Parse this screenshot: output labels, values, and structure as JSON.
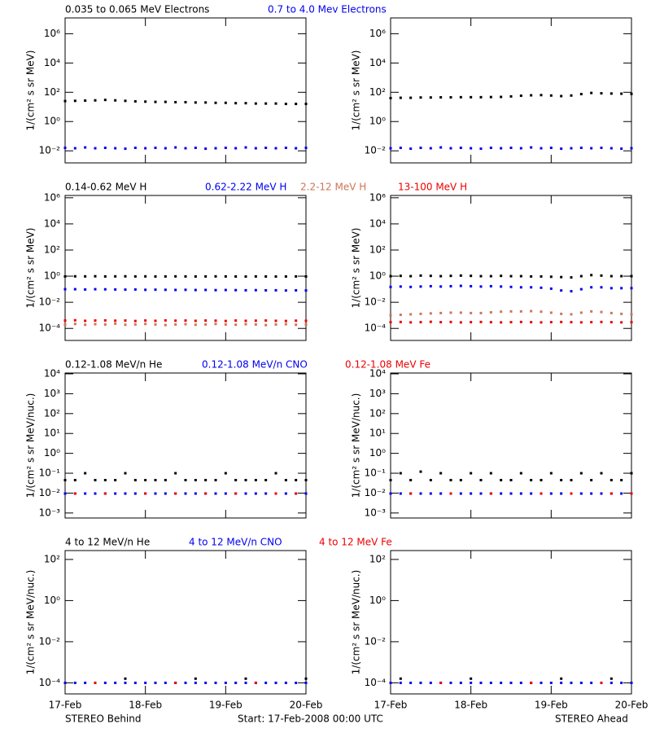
{
  "x_axis": {
    "xlim": [
      17,
      20
    ],
    "xticks": [
      {
        "value": 17,
        "label": "17-Feb"
      },
      {
        "value": 18,
        "label": "18-Feb"
      },
      {
        "value": 19,
        "label": "19-Feb"
      },
      {
        "value": 20,
        "label": "20-Feb"
      }
    ],
    "x": [
      17,
      17.125,
      17.25,
      17.375,
      17.5,
      17.625,
      17.75,
      17.875,
      18,
      18.125,
      18.25,
      18.375,
      18.5,
      18.625,
      18.75,
      18.875,
      19,
      19.125,
      19.25,
      19.375,
      19.5,
      19.625,
      19.75,
      19.875,
      20
    ]
  },
  "footer": {
    "left": "STEREO Behind",
    "center": "Start: 17-Feb-2008 00:00 UTC",
    "right": "STEREO Ahead"
  },
  "chart_data": [
    {
      "type": "scatter",
      "log_y": true,
      "ylabel": "1/(cm² s sr MeV)",
      "ylim": [
        0.0015,
        12000000
      ],
      "yticks": [
        {
          "value": 0.01,
          "label": "10⁻²"
        },
        {
          "value": 1,
          "label": "10⁰"
        },
        {
          "value": 100,
          "label": "10²"
        },
        {
          "value": 10000,
          "label": "10⁴"
        },
        {
          "value": 1000000,
          "label": "10⁶"
        }
      ],
      "series": [
        {
          "name": "0.035 to 0.065 MeV Electrons",
          "color": "#000000",
          "values": [
            [
              25,
              26,
              27,
              28,
              30,
              28,
              26,
              24,
              23,
              22,
              22,
              21,
              21,
              20,
              20,
              19,
              19,
              18,
              18,
              17,
              17,
              17,
              16,
              16,
              16
            ],
            [
              40,
              42,
              42,
              44,
              44,
              45,
              45,
              46,
              46,
              46,
              47,
              48,
              52,
              58,
              62,
              64,
              60,
              55,
              60,
              75,
              90,
              85,
              82,
              80,
              78
            ]
          ]
        },
        {
          "name": "0.7 to 4.0 Mev Electrons",
          "color": "#0000ee",
          "values": [
            [
              0.016,
              0.015,
              0.017,
              0.015,
              0.016,
              0.015,
              0.014,
              0.016,
              0.015,
              0.016,
              0.015,
              0.017,
              0.015,
              0.016,
              0.014,
              0.015,
              0.016,
              0.015,
              0.017,
              0.015,
              0.016,
              0.015,
              0.016,
              0.015,
              0.016
            ],
            [
              0.015,
              0.016,
              0.014,
              0.016,
              0.015,
              0.017,
              0.015,
              0.016,
              0.015,
              0.014,
              0.016,
              0.015,
              0.016,
              0.015,
              0.017,
              0.015,
              0.016,
              0.014,
              0.015,
              0.016,
              0.015,
              0.016,
              0.015,
              0.014,
              0.015
            ]
          ]
        }
      ]
    },
    {
      "type": "scatter",
      "log_y": true,
      "ylabel": "1/(cm² s sr MeV)",
      "ylim": [
        1.2e-05,
        1500000
      ],
      "yticks": [
        {
          "value": 0.0001,
          "label": "10⁻⁴"
        },
        {
          "value": 0.01,
          "label": "10⁻²"
        },
        {
          "value": 1,
          "label": "10⁰"
        },
        {
          "value": 100,
          "label": "10²"
        },
        {
          "value": 10000,
          "label": "10⁴"
        },
        {
          "value": 1000000,
          "label": "10⁶"
        }
      ],
      "series": [
        {
          "name": "0.14-0.62 MeV H",
          "color": "#000000",
          "values": [
            [
              0.95,
              0.97,
              0.96,
              0.98,
              0.95,
              0.96,
              0.97,
              0.95,
              0.96,
              0.94,
              0.95,
              0.96,
              0.95,
              0.94,
              0.95,
              0.96,
              0.95,
              0.94,
              0.93,
              0.95,
              0.94,
              0.93,
              0.94,
              0.95,
              0.94
            ],
            [
              1.0,
              1.05,
              1.0,
              1.1,
              1.05,
              1.0,
              1.05,
              1.1,
              1.05,
              1.0,
              1.0,
              1.05,
              1.0,
              1.0,
              0.95,
              0.95,
              0.9,
              0.85,
              0.8,
              1.0,
              1.2,
              1.1,
              1.0,
              1.0,
              1.0
            ]
          ]
        },
        {
          "name": "0.62-2.22 MeV H",
          "color": "#0000ee",
          "values": [
            [
              0.1,
              0.1,
              0.095,
              0.1,
              0.098,
              0.095,
              0.093,
              0.095,
              0.09,
              0.092,
              0.09,
              0.088,
              0.09,
              0.087,
              0.088,
              0.085,
              0.087,
              0.085,
              0.083,
              0.085,
              0.082,
              0.083,
              0.08,
              0.082,
              0.08
            ],
            [
              0.15,
              0.16,
              0.15,
              0.16,
              0.17,
              0.16,
              0.17,
              0.18,
              0.17,
              0.16,
              0.17,
              0.16,
              0.15,
              0.14,
              0.14,
              0.13,
              0.11,
              0.08,
              0.07,
              0.1,
              0.14,
              0.14,
              0.12,
              0.12,
              0.12
            ]
          ]
        },
        {
          "name": "2.2-12 MeV H",
          "color": "#cc7755",
          "values": [
            [
              0.0002,
              0.00022,
              0.00019,
              0.00021,
              0.0002,
              0.00023,
              0.00019,
              0.0002,
              0.00022,
              0.0002,
              0.00018,
              0.0002,
              0.00021,
              0.00019,
              0.0002,
              0.00022,
              0.0002,
              0.00019,
              0.00021,
              0.0002,
              0.00018,
              0.0002,
              0.00021,
              0.00019,
              0.0002
            ],
            [
              0.001,
              0.0011,
              0.0012,
              0.0013,
              0.0014,
              0.0015,
              0.0016,
              0.0016,
              0.0015,
              0.0015,
              0.0017,
              0.0019,
              0.002,
              0.002,
              0.0021,
              0.0019,
              0.0016,
              0.0013,
              0.0012,
              0.0016,
              0.002,
              0.0018,
              0.0015,
              0.0013,
              0.0012
            ]
          ]
        },
        {
          "name": "13-100 MeV H",
          "color": "#ee0000",
          "values": [
            [
              0.0004,
              0.00042,
              0.00038,
              0.0004,
              0.00041,
              0.00039,
              0.0004,
              0.00037,
              0.0004,
              0.00038,
              0.00041,
              0.00039,
              0.0004,
              0.00038,
              0.0004,
              0.00039,
              0.00037,
              0.0004,
              0.00038,
              0.00039,
              0.0004,
              0.00038,
              0.00037,
              0.00039,
              0.00038
            ],
            [
              0.0003,
              0.00031,
              0.00029,
              0.0003,
              0.00032,
              0.0003,
              0.00031,
              0.00029,
              0.0003,
              0.00031,
              0.0003,
              0.00029,
              0.0003,
              0.00031,
              0.0003,
              0.00029,
              0.0003,
              0.00031,
              0.0003,
              0.00029,
              0.0003,
              0.00031,
              0.0003,
              0.00029,
              0.0003
            ]
          ]
        }
      ]
    },
    {
      "type": "scatter",
      "log_y": true,
      "ylabel": "1/(cm² s sr MeV/nuc.)",
      "ylim": [
        0.00056,
        11000
      ],
      "yticks": [
        {
          "value": 0.001,
          "label": "10⁻³"
        },
        {
          "value": 0.01,
          "label": "10⁻²"
        },
        {
          "value": 0.1,
          "label": "10⁻¹"
        },
        {
          "value": 1,
          "label": "10⁰"
        },
        {
          "value": 10,
          "label": "10¹"
        },
        {
          "value": 100,
          "label": "10²"
        },
        {
          "value": 1000,
          "label": "10³"
        },
        {
          "value": 10000,
          "label": "10⁴"
        }
      ],
      "series": [
        {
          "name": "0.12-1.08 MeV/n He",
          "color": "#000000",
          "values": [
            [
              0.045,
              0.045,
              0.1,
              0.045,
              0.045,
              0.045,
              0.1,
              0.045,
              0.045,
              0.045,
              0.045,
              0.1,
              0.045,
              0.045,
              0.045,
              0.045,
              0.1,
              0.045,
              0.045,
              0.045,
              0.045,
              0.1,
              0.045,
              0.045,
              0.045
            ],
            [
              0.045,
              0.1,
              0.045,
              0.12,
              0.045,
              0.1,
              0.045,
              0.045,
              0.1,
              0.045,
              0.1,
              0.045,
              0.045,
              0.1,
              0.045,
              0.045,
              0.1,
              0.045,
              0.045,
              0.1,
              0.045,
              0.1,
              0.045,
              0.045,
              0.1
            ]
          ]
        },
        {
          "name": "0.12-1.08 MeV/n CNO",
          "color": "#0000ee",
          "values": [
            [
              0.0095,
              0.0095,
              0.0095,
              0.0095,
              0.0095,
              0.0095,
              0.0095,
              0.0095,
              0.0095,
              0.0095,
              0.0095,
              0.0095,
              0.0095,
              0.0095,
              0.0095,
              0.0095,
              0.0095,
              0.0095,
              0.0095,
              0.0095,
              0.0095,
              0.0095,
              0.0095,
              0.0095,
              0.0095
            ],
            [
              0.0095,
              0.0095,
              0.0095,
              0.0095,
              0.0095,
              0.0095,
              0.0095,
              0.0095,
              0.0095,
              0.0095,
              0.0095,
              0.0095,
              0.0095,
              0.0095,
              0.0095,
              0.0095,
              0.0095,
              0.0095,
              0.0095,
              0.0095,
              0.0095,
              0.0095,
              0.0095,
              0.0095,
              0.0095
            ]
          ]
        },
        {
          "name": "0.12-1.08 MeV Fe",
          "color": "#ee0000",
          "values": [
            [
              null,
              0.0095,
              null,
              null,
              0.0095,
              null,
              null,
              null,
              0.0095,
              null,
              null,
              0.0095,
              null,
              null,
              0.0095,
              null,
              null,
              0.0095,
              null,
              null,
              null,
              0.0095,
              null,
              0.0095,
              null
            ],
            [
              null,
              null,
              0.0095,
              null,
              null,
              null,
              0.0095,
              null,
              null,
              null,
              0.0095,
              null,
              null,
              null,
              null,
              0.0095,
              null,
              null,
              0.0095,
              null,
              null,
              null,
              0.0095,
              null,
              0.0095
            ]
          ]
        }
      ]
    },
    {
      "type": "scatter",
      "log_y": true,
      "ylabel": "1/(cm² s sr MeV/nuc.)",
      "ylim": [
        2.9e-05,
        270
      ],
      "yticks": [
        {
          "value": 0.0001,
          "label": "10⁻⁴"
        },
        {
          "value": 0.01,
          "label": "10⁻²"
        },
        {
          "value": 1,
          "label": "10⁰"
        },
        {
          "value": 100,
          "label": "10²"
        }
      ],
      "series": [
        {
          "name": "4 to 12 MeV/n He",
          "color": "#000000",
          "values": [
            [
              null,
              null,
              null,
              null,
              null,
              null,
              0.00016,
              null,
              null,
              null,
              null,
              null,
              null,
              0.00016,
              null,
              null,
              null,
              null,
              0.00016,
              null,
              null,
              null,
              null,
              null,
              0.00016
            ],
            [
              null,
              0.00016,
              null,
              null,
              null,
              null,
              null,
              null,
              0.00016,
              null,
              null,
              null,
              null,
              null,
              null,
              null,
              null,
              0.00016,
              null,
              null,
              null,
              null,
              0.00016,
              null,
              null
            ]
          ]
        },
        {
          "name": "4 to 12 MeV/n CNO",
          "color": "#0000ee",
          "values": [
            [
              0.0001,
              0.0001,
              0.0001,
              0.0001,
              0.0001,
              0.0001,
              0.0001,
              0.0001,
              0.0001,
              0.0001,
              0.0001,
              0.0001,
              0.0001,
              0.0001,
              0.0001,
              0.0001,
              0.0001,
              0.0001,
              0.0001,
              0.0001,
              0.0001,
              0.0001,
              0.0001,
              0.0001,
              0.0001
            ],
            [
              0.0001,
              0.0001,
              0.0001,
              0.0001,
              0.0001,
              0.0001,
              0.0001,
              0.0001,
              0.0001,
              0.0001,
              0.0001,
              0.0001,
              0.0001,
              0.0001,
              0.0001,
              0.0001,
              0.0001,
              0.0001,
              0.0001,
              0.0001,
              0.0001,
              0.0001,
              0.0001,
              0.0001,
              0.0001
            ]
          ]
        },
        {
          "name": "4 to 12 MeV Fe",
          "color": "#ee0000",
          "values": [
            [
              null,
              null,
              null,
              0.0001,
              null,
              null,
              null,
              null,
              null,
              null,
              null,
              0.0001,
              null,
              null,
              null,
              null,
              null,
              null,
              null,
              0.0001,
              null,
              null,
              null,
              null,
              null
            ],
            [
              null,
              null,
              null,
              null,
              null,
              0.0001,
              null,
              null,
              null,
              null,
              null,
              null,
              null,
              null,
              0.0001,
              null,
              null,
              null,
              null,
              null,
              null,
              0.0001,
              null,
              null,
              null
            ]
          ]
        }
      ]
    }
  ]
}
